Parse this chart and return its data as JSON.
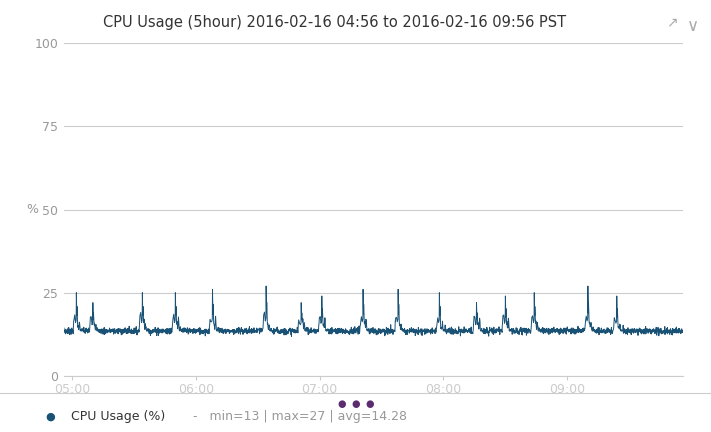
{
  "title": "CPU Usage (5hour) 2016-02-16 04:56 to 2016-02-16 09:56 PST",
  "ylabel": "%",
  "ylim": [
    0,
    100
  ],
  "yticks": [
    0,
    25,
    50,
    75,
    100
  ],
  "xlim_min": 0,
  "xlim_max": 300,
  "xtick_labels": [
    "05:00",
    "06:00",
    "07:00",
    "08:00",
    "09:00"
  ],
  "xtick_positions": [
    4,
    64,
    124,
    184,
    244
  ],
  "legend_label": "CPU Usage (%)",
  "legend_stats": "  -   min=13 | max=27 | avg=14.28",
  "line_color": "#1a5276",
  "legend_dot_color": "#1a5276",
  "ellipsis_dot_color": "#5b2c6f",
  "background_color": "#ffffff",
  "plot_bg_color": "#ffffff",
  "grid_color": "#cccccc",
  "tick_color": "#999999",
  "title_color": "#333333",
  "baseline": 13.5,
  "noise_std": 0.5,
  "spike_times": [
    6,
    14,
    38,
    54,
    72,
    98,
    115,
    125,
    145,
    162,
    182,
    200,
    214,
    228,
    254,
    268
  ],
  "spike_heights": [
    25,
    22,
    25,
    25,
    26,
    27,
    22,
    24,
    26,
    26,
    25,
    22,
    24,
    25,
    27,
    24
  ],
  "icon_expand": "↗",
  "icon_collapse": "∨"
}
